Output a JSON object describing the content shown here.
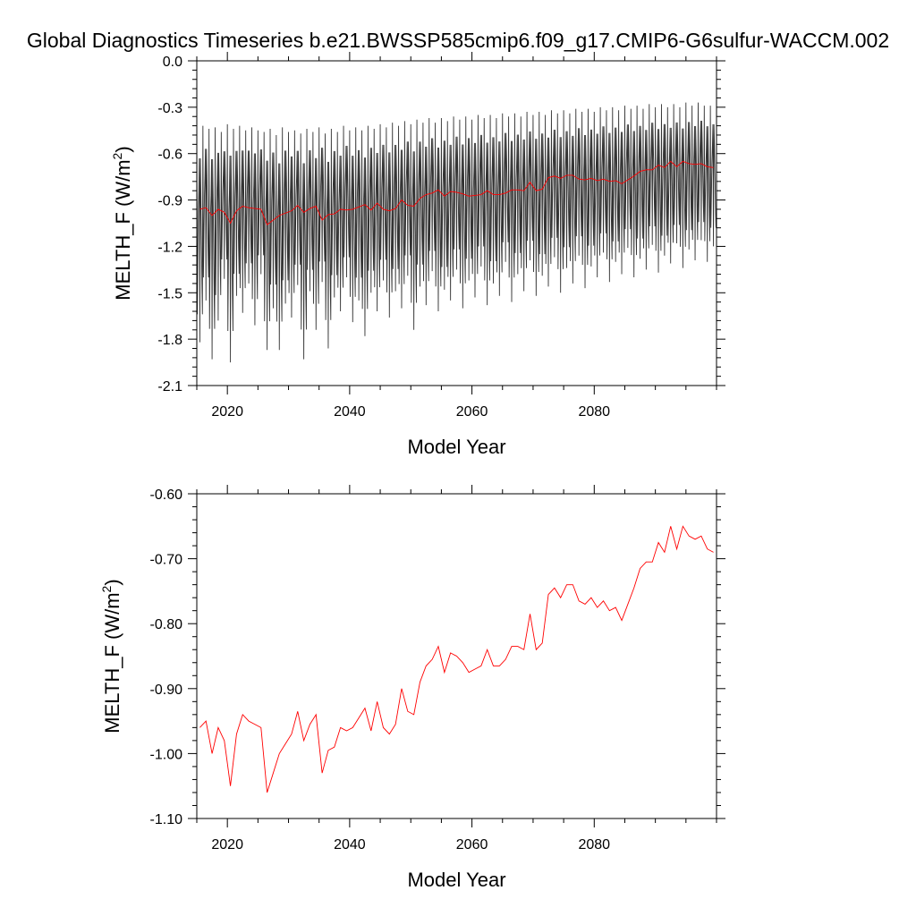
{
  "title": "Global Diagnostics Timeseries b.e21.BWSSP585cmip6.f09_g17.CMIP6-G6sulfur-WACCM.002",
  "chart_data": [
    {
      "type": "line",
      "xlabel": "Model Year",
      "ylabel": "MELTH_F (W/m²)",
      "ylabel_main": "MELTH_F (W/m",
      "ylabel_sup": "2",
      "ylabel_close": ")",
      "xlim": [
        2015,
        2100
      ],
      "ylim": [
        -2.1,
        0.0
      ],
      "xticks": [
        2020,
        2040,
        2060,
        2080
      ],
      "xtick_labels": [
        "2020",
        "2040",
        "2060",
        "2080"
      ],
      "yticks": [
        0.0,
        -0.3,
        -0.6,
        -0.9,
        -1.2,
        -1.5,
        -1.8,
        -2.1
      ],
      "ytick_labels": [
        "0.0",
        "-0.3",
        "-0.6",
        "-0.9",
        "-1.2",
        "-1.5",
        "-1.8",
        "-2.1"
      ],
      "grid": false,
      "series": [
        {
          "kind": "monthly",
          "color": "#333333",
          "x_start": 2015.0,
          "step": 0.08333,
          "annual_min": [
            -1.82,
            -1.55,
            -1.93,
            -1.68,
            -1.41,
            -1.95,
            -1.52,
            -1.63,
            -1.44,
            -1.71,
            -1.38,
            -1.87,
            -1.6,
            -1.87,
            -1.57,
            -1.66,
            -1.45,
            -1.93,
            -1.49,
            -1.74,
            -1.43,
            -1.86,
            -1.53,
            -1.62,
            -1.4,
            -1.69,
            -1.55,
            -1.78,
            -1.5,
            -1.62,
            -1.42,
            -1.66,
            -1.49,
            -1.6,
            -1.39,
            -1.74,
            -1.46,
            -1.58,
            -1.36,
            -1.62,
            -1.48,
            -1.55,
            -1.35,
            -1.6,
            -1.42,
            -1.53,
            -1.33,
            -1.58,
            -1.44,
            -1.52,
            -1.3,
            -1.56,
            -1.38,
            -1.49,
            -1.29,
            -1.52,
            -1.39,
            -1.46,
            -1.27,
            -1.5,
            -1.34,
            -1.44,
            -1.26,
            -1.47,
            -1.33,
            -1.4,
            -1.24,
            -1.43,
            -1.3,
            -1.38,
            -1.21,
            -1.4,
            -1.28,
            -1.35,
            -1.19,
            -1.37,
            -1.26,
            -1.31,
            -1.18,
            -1.34,
            -1.22,
            -1.29,
            -1.16,
            -1.3,
            -1.2
          ],
          "annual_max": [
            -0.45,
            -0.42,
            -0.44,
            -0.43,
            -0.46,
            -0.41,
            -0.44,
            -0.42,
            -0.45,
            -0.43,
            -0.45,
            -0.46,
            -0.44,
            -0.48,
            -0.43,
            -0.46,
            -0.45,
            -0.47,
            -0.44,
            -0.46,
            -0.43,
            -0.47,
            -0.44,
            -0.46,
            -0.42,
            -0.45,
            -0.43,
            -0.45,
            -0.42,
            -0.44,
            -0.41,
            -0.43,
            -0.4,
            -0.42,
            -0.39,
            -0.41,
            -0.38,
            -0.4,
            -0.37,
            -0.4,
            -0.37,
            -0.39,
            -0.36,
            -0.38,
            -0.36,
            -0.38,
            -0.35,
            -0.37,
            -0.35,
            -0.37,
            -0.34,
            -0.36,
            -0.34,
            -0.36,
            -0.33,
            -0.35,
            -0.33,
            -0.35,
            -0.32,
            -0.34,
            -0.32,
            -0.34,
            -0.31,
            -0.33,
            -0.31,
            -0.33,
            -0.3,
            -0.32,
            -0.3,
            -0.32,
            -0.29,
            -0.31,
            -0.29,
            -0.31,
            -0.28,
            -0.3,
            -0.28,
            -0.3,
            -0.28,
            -0.3,
            -0.27,
            -0.29,
            -0.27,
            -0.29,
            -0.29
          ]
        },
        {
          "kind": "annual",
          "color": "#ff0000",
          "x": [
            2015.5,
            2016.5,
            2017.5,
            2018.5,
            2019.5,
            2020.5,
            2021.5,
            2022.5,
            2023.5,
            2024.5,
            2025.5,
            2026.5,
            2027.5,
            2028.5,
            2029.5,
            2030.5,
            2031.5,
            2032.5,
            2033.5,
            2034.5,
            2035.5,
            2036.5,
            2037.5,
            2038.5,
            2039.5,
            2040.5,
            2041.5,
            2042.5,
            2043.5,
            2044.5,
            2045.5,
            2046.5,
            2047.5,
            2048.5,
            2049.5,
            2050.5,
            2051.5,
            2052.5,
            2053.5,
            2054.5,
            2055.5,
            2056.5,
            2057.5,
            2058.5,
            2059.5,
            2060.5,
            2061.5,
            2062.5,
            2063.5,
            2064.5,
            2065.5,
            2066.5,
            2067.5,
            2068.5,
            2069.5,
            2070.5,
            2071.5,
            2072.5,
            2073.5,
            2074.5,
            2075.5,
            2076.5,
            2077.5,
            2078.5,
            2079.5,
            2080.5,
            2081.5,
            2082.5,
            2083.5,
            2084.5,
            2085.5,
            2086.5,
            2087.5,
            2088.5,
            2089.5,
            2090.5,
            2091.5,
            2092.5,
            2093.5,
            2094.5,
            2095.5,
            2096.5,
            2097.5,
            2098.5,
            2099.5
          ],
          "values": [
            -0.96,
            -0.95,
            -1.0,
            -0.96,
            -0.98,
            -1.05,
            -0.97,
            -0.94,
            -0.95,
            -0.955,
            -0.96,
            -1.06,
            -1.03,
            -1.0,
            -0.985,
            -0.97,
            -0.935,
            -0.98,
            -0.955,
            -0.94,
            -1.03,
            -0.995,
            -0.99,
            -0.96,
            -0.965,
            -0.96,
            -0.945,
            -0.93,
            -0.965,
            -0.92,
            -0.96,
            -0.97,
            -0.955,
            -0.9,
            -0.935,
            -0.94,
            -0.89,
            -0.865,
            -0.855,
            -0.835,
            -0.875,
            -0.845,
            -0.85,
            -0.86,
            -0.875,
            -0.87,
            -0.865,
            -0.84,
            -0.865,
            -0.865,
            -0.855,
            -0.835,
            -0.835,
            -0.84,
            -0.785,
            -0.84,
            -0.83,
            -0.755,
            -0.745,
            -0.76,
            -0.74,
            -0.74,
            -0.765,
            -0.77,
            -0.76,
            -0.775,
            -0.765,
            -0.78,
            -0.775,
            -0.795,
            -0.77,
            -0.745,
            -0.715,
            -0.705,
            -0.705,
            -0.675,
            -0.69,
            -0.65,
            -0.685,
            -0.65,
            -0.665,
            -0.67,
            -0.665,
            -0.685,
            -0.69
          ]
        }
      ]
    },
    {
      "type": "line",
      "xlabel": "Model Year",
      "ylabel": "MELTH_F (W/m²)",
      "ylabel_main": "MELTH_F (W/m",
      "ylabel_sup": "2",
      "ylabel_close": ")",
      "xlim": [
        2015,
        2100
      ],
      "ylim": [
        -1.1,
        -0.6
      ],
      "xticks": [
        2020,
        2040,
        2060,
        2080
      ],
      "xtick_labels": [
        "2020",
        "2040",
        "2060",
        "2080"
      ],
      "yticks": [
        -0.6,
        -0.7,
        -0.8,
        -0.9,
        -1.0,
        -1.1
      ],
      "ytick_labels": [
        "-0.60",
        "-0.70",
        "-0.80",
        "-0.90",
        "-1.00",
        "-1.10"
      ],
      "grid": false,
      "series": [
        {
          "kind": "annual",
          "color": "#ff0000",
          "x": [
            2015.5,
            2016.5,
            2017.5,
            2018.5,
            2019.5,
            2020.5,
            2021.5,
            2022.5,
            2023.5,
            2024.5,
            2025.5,
            2026.5,
            2027.5,
            2028.5,
            2029.5,
            2030.5,
            2031.5,
            2032.5,
            2033.5,
            2034.5,
            2035.5,
            2036.5,
            2037.5,
            2038.5,
            2039.5,
            2040.5,
            2041.5,
            2042.5,
            2043.5,
            2044.5,
            2045.5,
            2046.5,
            2047.5,
            2048.5,
            2049.5,
            2050.5,
            2051.5,
            2052.5,
            2053.5,
            2054.5,
            2055.5,
            2056.5,
            2057.5,
            2058.5,
            2059.5,
            2060.5,
            2061.5,
            2062.5,
            2063.5,
            2064.5,
            2065.5,
            2066.5,
            2067.5,
            2068.5,
            2069.5,
            2070.5,
            2071.5,
            2072.5,
            2073.5,
            2074.5,
            2075.5,
            2076.5,
            2077.5,
            2078.5,
            2079.5,
            2080.5,
            2081.5,
            2082.5,
            2083.5,
            2084.5,
            2085.5,
            2086.5,
            2087.5,
            2088.5,
            2089.5,
            2090.5,
            2091.5,
            2092.5,
            2093.5,
            2094.5,
            2095.5,
            2096.5,
            2097.5,
            2098.5,
            2099.5
          ],
          "values": [
            -0.96,
            -0.95,
            -1.0,
            -0.96,
            -0.98,
            -1.05,
            -0.97,
            -0.94,
            -0.95,
            -0.955,
            -0.96,
            -1.06,
            -1.03,
            -1.0,
            -0.985,
            -0.97,
            -0.935,
            -0.98,
            -0.955,
            -0.94,
            -1.03,
            -0.995,
            -0.99,
            -0.96,
            -0.965,
            -0.96,
            -0.945,
            -0.93,
            -0.965,
            -0.92,
            -0.96,
            -0.97,
            -0.955,
            -0.9,
            -0.935,
            -0.94,
            -0.89,
            -0.865,
            -0.855,
            -0.835,
            -0.875,
            -0.845,
            -0.85,
            -0.86,
            -0.875,
            -0.87,
            -0.865,
            -0.84,
            -0.865,
            -0.865,
            -0.855,
            -0.835,
            -0.835,
            -0.84,
            -0.785,
            -0.84,
            -0.83,
            -0.755,
            -0.745,
            -0.76,
            -0.74,
            -0.74,
            -0.765,
            -0.77,
            -0.76,
            -0.775,
            -0.765,
            -0.78,
            -0.775,
            -0.795,
            -0.77,
            -0.745,
            -0.715,
            -0.705,
            -0.705,
            -0.675,
            -0.69,
            -0.65,
            -0.685,
            -0.65,
            -0.665,
            -0.67,
            -0.665,
            -0.685,
            -0.69
          ]
        }
      ]
    }
  ]
}
